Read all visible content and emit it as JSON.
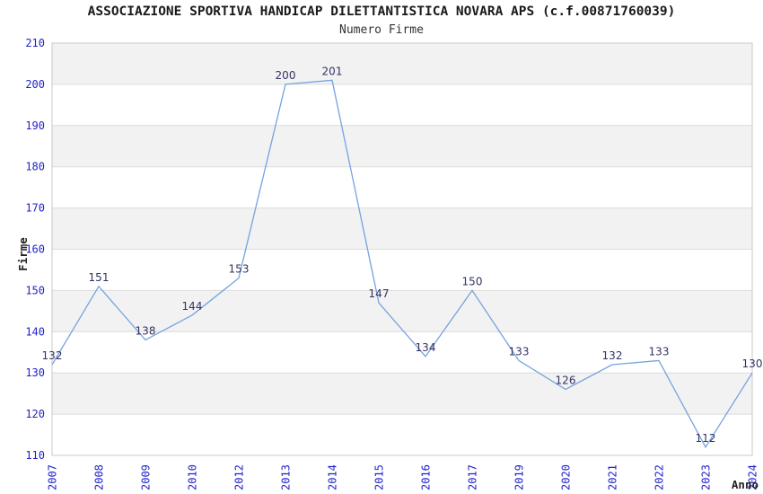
{
  "header": {
    "title": "ASSOCIAZIONE SPORTIVA HANDICAP DILETTANTISTICA NOVARA APS (c.f.00871760039)",
    "subtitle": "Numero Firme"
  },
  "chart_data": {
    "type": "line",
    "title": "ASSOCIAZIONE SPORTIVA HANDICAP DILETTANTISTICA NOVARA APS (c.f.00871760039)",
    "subtitle": "Numero Firme",
    "xlabel": "Anno",
    "ylabel": "Firme",
    "categories": [
      "2007",
      "2008",
      "2009",
      "2010",
      "2012",
      "2013",
      "2014",
      "2015",
      "2016",
      "2017",
      "2019",
      "2020",
      "2021",
      "2022",
      "2023",
      "2024"
    ],
    "values": [
      132,
      151,
      138,
      144,
      153,
      200,
      201,
      147,
      134,
      150,
      133,
      126,
      132,
      133,
      112,
      130
    ],
    "ylim": [
      110,
      210
    ],
    "ytick_step": 10,
    "grid": true,
    "banded_background": true,
    "legend": "none",
    "data_labels_visible": true,
    "colors": {
      "line": "#74A3E0",
      "tick_label": "#2222CC",
      "data_label": "#333366",
      "band": "#f2f2f2",
      "gridline": "#dcdcdc",
      "plot_border": "#c9c9c9",
      "axis_title": "#222222",
      "title_text": "#1a1a1a",
      "background": "#ffffff"
    }
  }
}
